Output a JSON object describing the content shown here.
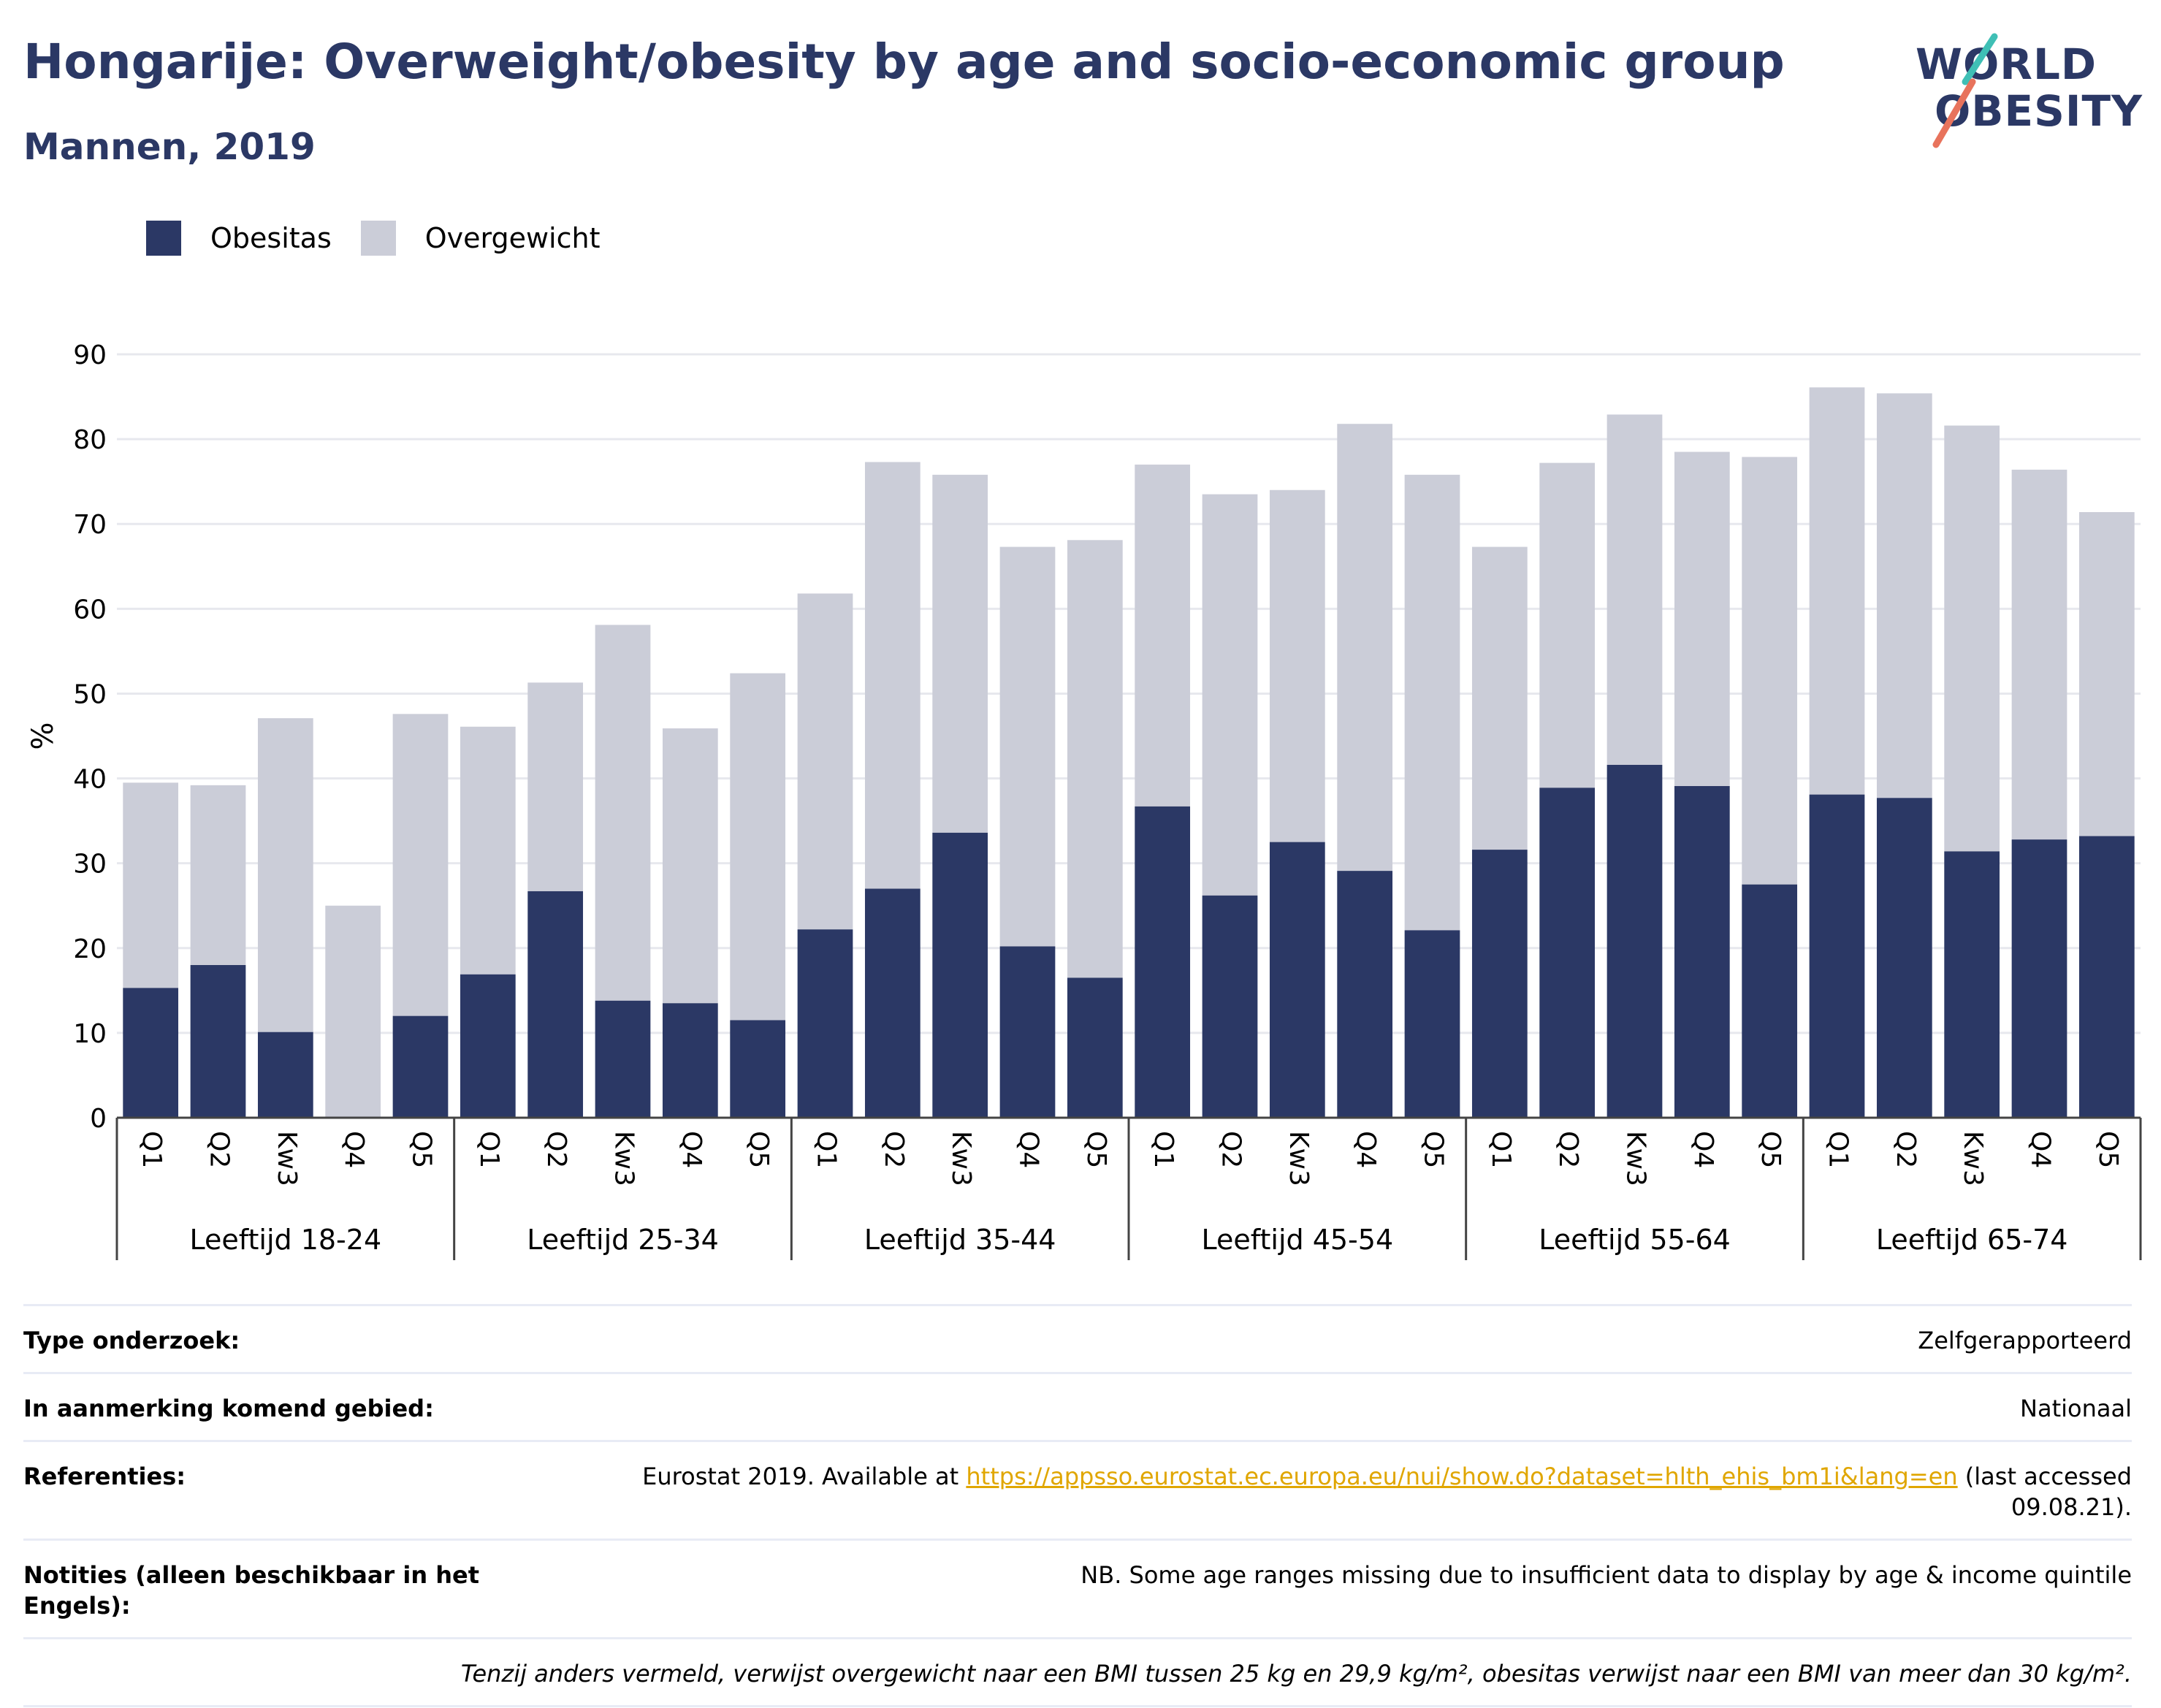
{
  "title": "Hongarije: Overweight/obesity by age and socio-economic group",
  "subtitle": "Mannen, 2019",
  "logo": {
    "line1": "WORLD",
    "line2": "OBESITY"
  },
  "colors": {
    "obesity": "#2b3865",
    "overweight": "#cbcdd8",
    "title": "#2b3865",
    "link": "#e0a600"
  },
  "chart_data": {
    "type": "bar",
    "stacked": true,
    "ylabel": "%",
    "ylim": [
      0,
      90
    ],
    "yticks": [
      0,
      10,
      20,
      30,
      40,
      50,
      60,
      70,
      80,
      90
    ],
    "grid": true,
    "legend_position": "top-left",
    "groups": [
      "Leeftijd 18-24",
      "Leeftijd 25-34",
      "Leeftijd 35-44",
      "Leeftijd 45-54",
      "Leeftijd 55-64",
      "Leeftijd 65-74"
    ],
    "categories": [
      "Q1",
      "Q2",
      "Kw3",
      "Q4",
      "Q5"
    ],
    "series": [
      {
        "name": "Obesitas",
        "values": [
          [
            15.3,
            18.0,
            10.1,
            0,
            12.0
          ],
          [
            16.9,
            26.7,
            13.8,
            13.5,
            11.5
          ],
          [
            22.2,
            27.0,
            33.6,
            20.2,
            16.5
          ],
          [
            36.7,
            26.2,
            32.5,
            29.1,
            22.1
          ],
          [
            31.6,
            38.9,
            41.6,
            39.1,
            27.5
          ],
          [
            38.1,
            37.7,
            31.4,
            32.8,
            33.2
          ]
        ]
      },
      {
        "name": "Overgewicht",
        "values": [
          [
            24.2,
            21.2,
            37.0,
            25.0,
            35.6
          ],
          [
            29.2,
            24.6,
            44.3,
            32.4,
            40.9
          ],
          [
            39.6,
            50.3,
            42.2,
            47.1,
            51.6
          ],
          [
            40.3,
            47.3,
            41.5,
            52.7,
            53.7
          ],
          [
            35.7,
            38.3,
            41.3,
            39.4,
            50.4
          ],
          [
            48.0,
            47.7,
            50.2,
            43.6,
            38.2
          ]
        ]
      }
    ]
  },
  "meta": {
    "rows": [
      {
        "key": "Type onderzoek:",
        "value": "Zelfgerapporteerd"
      },
      {
        "key": "In aanmerking komend gebied:",
        "value": "Nationaal"
      },
      {
        "key": "Referenties:",
        "value_pre": "Eurostat 2019. Available at ",
        "link": "https://appsso.eurostat.ec.europa.eu/nui/show.do?dataset=hlth_ehis_bm1i&lang=en",
        "value_post": " (last accessed 09.08.21)."
      },
      {
        "key": "Notities (alleen beschikbaar in het Engels):",
        "value": "NB. Some age ranges missing due to insufficient data to display by age & income quintile"
      }
    ],
    "footnote": "Tenzij anders vermeld, verwijst overgewicht naar een BMI tussen 25 kg en 29,9 kg/m², obesitas verwijst naar een BMI van meer dan 30 kg/m²."
  }
}
